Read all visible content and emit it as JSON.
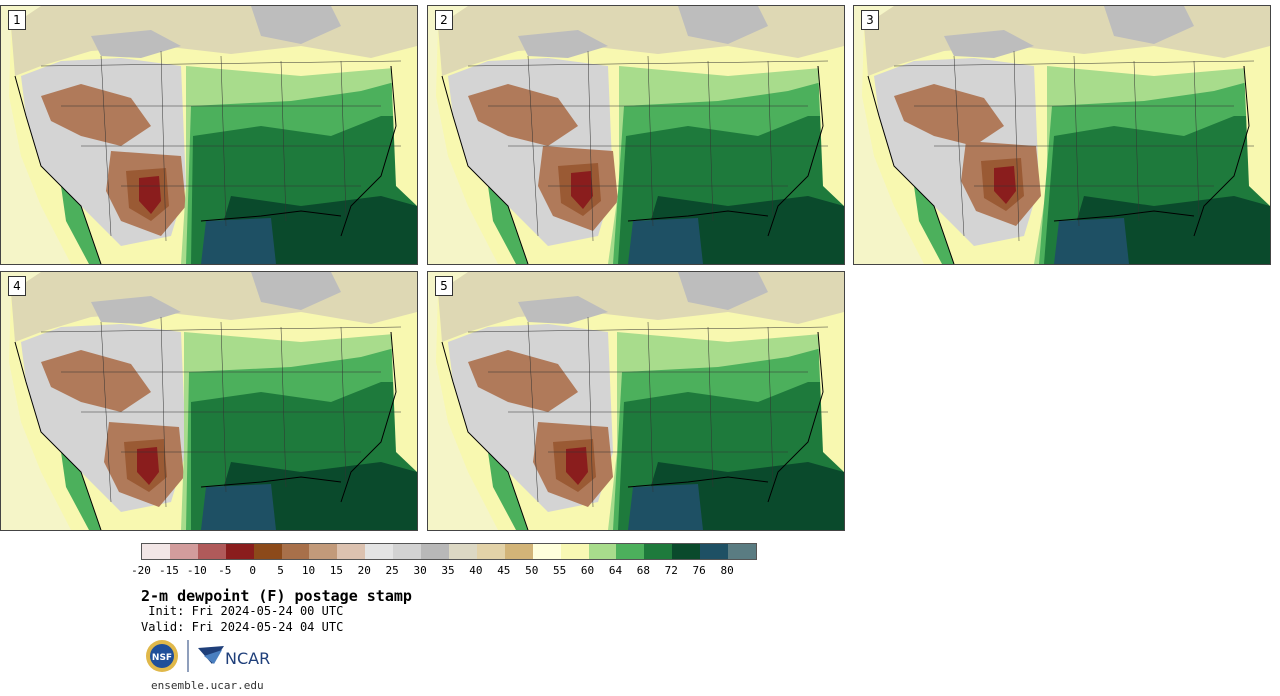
{
  "panels": [
    {
      "label": "1"
    },
    {
      "label": "2"
    },
    {
      "label": "3"
    },
    {
      "label": "4"
    },
    {
      "label": "5"
    }
  ],
  "colorbar": {
    "ticks": [
      "-20",
      "-15",
      "-10",
      "-5",
      "0",
      "5",
      "10",
      "15",
      "20",
      "25",
      "30",
      "35",
      "40",
      "45",
      "50",
      "55",
      "60",
      "64",
      "68",
      "72",
      "76",
      "80"
    ],
    "colors": [
      "#f2e6e6",
      "#d29c9c",
      "#b05a5a",
      "#8a1d1d",
      "#8c4a1a",
      "#a8704a",
      "#c29a7a",
      "#dcc2b0",
      "#e4e4e4",
      "#d2d2d2",
      "#b8b8b8",
      "#dcd8c4",
      "#e2d2a8",
      "#d2b478",
      "#ffffdc",
      "#f8f8b4",
      "#a8dc8c",
      "#4cb05c",
      "#1e7a3c",
      "#0a4a2c",
      "#1e5064",
      "#5a7c82"
    ]
  },
  "map_colors": {
    "ocean_pacific": "#f5f5c8",
    "canada_tan": "#ded8b4",
    "canada_gray": "#bdbdbd",
    "west_gray": "#d4d4d4",
    "west_brown": "#b07a5a",
    "plains_brown": "#9a5a34",
    "core_red": "#8a1d1d",
    "light_yellow": "#f8f8b0",
    "light_green": "#a8dc8c",
    "green": "#4cb05c",
    "dark_green": "#1e7a3c",
    "darkest_green": "#0a4a2c",
    "gulf": "#1e5064",
    "mexico_green": "#4cb05c"
  },
  "text": {
    "title": "2-m dewpoint (F) postage stamp",
    "init": " Init: Fri 2024-05-24 00 UTC",
    "valid": "Valid: Fri 2024-05-24 04 UTC",
    "url": "ensemble.ucar.edu",
    "nsf_logo": "NSF",
    "ncar_logo": "NCAR"
  }
}
